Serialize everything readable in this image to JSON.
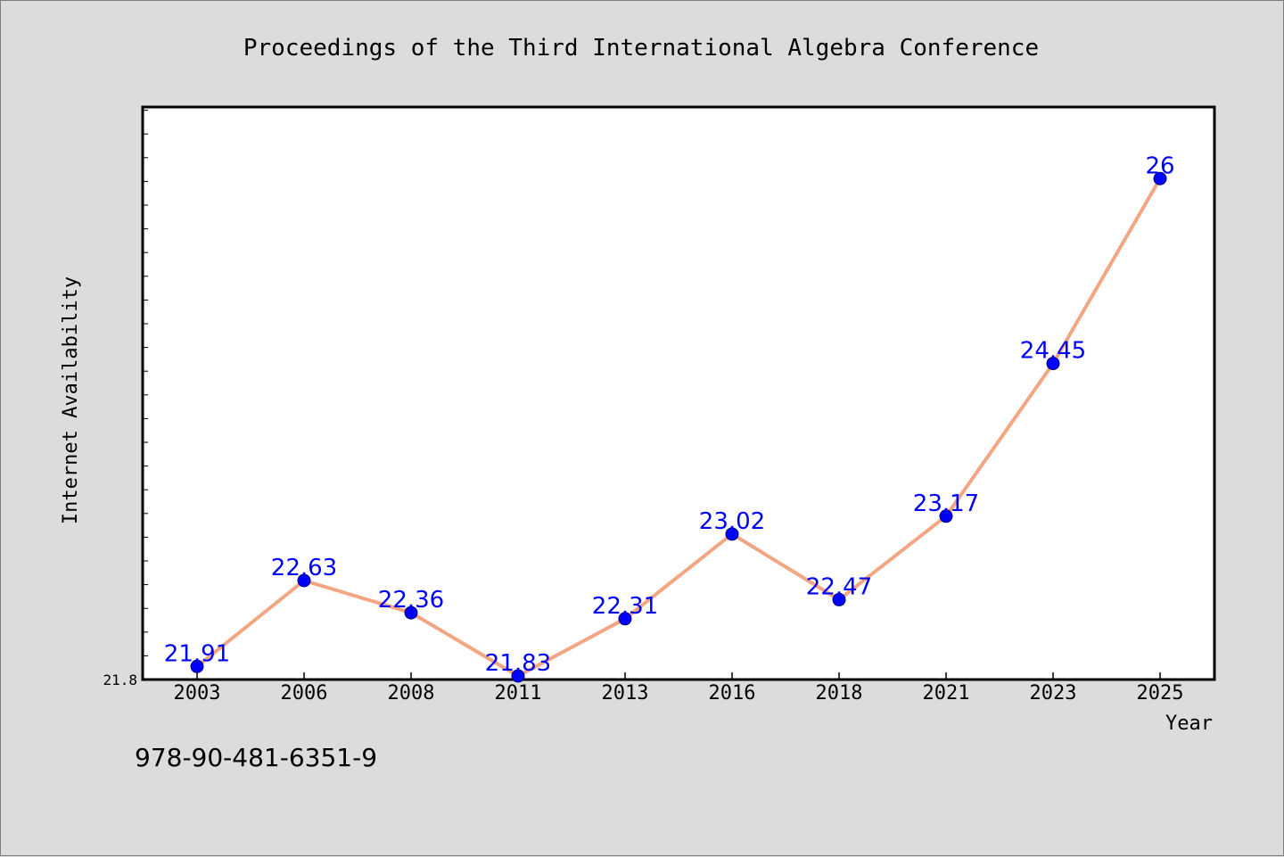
{
  "isbn_text": "978-90-481-6351-9",
  "chart_data": {
    "type": "line",
    "title": "Proceedings of the Third International Algebra Conference",
    "xlabel": "Year",
    "ylabel": "Internet Availability",
    "categories": [
      "2003",
      "2006",
      "2008",
      "2011",
      "2013",
      "2016",
      "2018",
      "2021",
      "2023",
      "2025"
    ],
    "series": [
      {
        "values": [
          21.91,
          22.63,
          22.36,
          21.83,
          22.31,
          23.02,
          22.47,
          23.17,
          24.45,
          26
        ],
        "labels": [
          "21.91",
          "22.63",
          "22.36",
          "21.83",
          "22.31",
          "23.02",
          "22.47",
          "23.17",
          "24.45",
          "26"
        ],
        "line_color": "#f4a582",
        "marker_color": "#0000ff",
        "label_color": "#0000ff"
      }
    ],
    "y_tick_labels": [
      "21.8"
    ],
    "ylim": [
      21.8,
      26.6
    ],
    "grid": false,
    "legend": "none",
    "plot_background": "#ffffff",
    "page_background": "#dcdcdc"
  }
}
